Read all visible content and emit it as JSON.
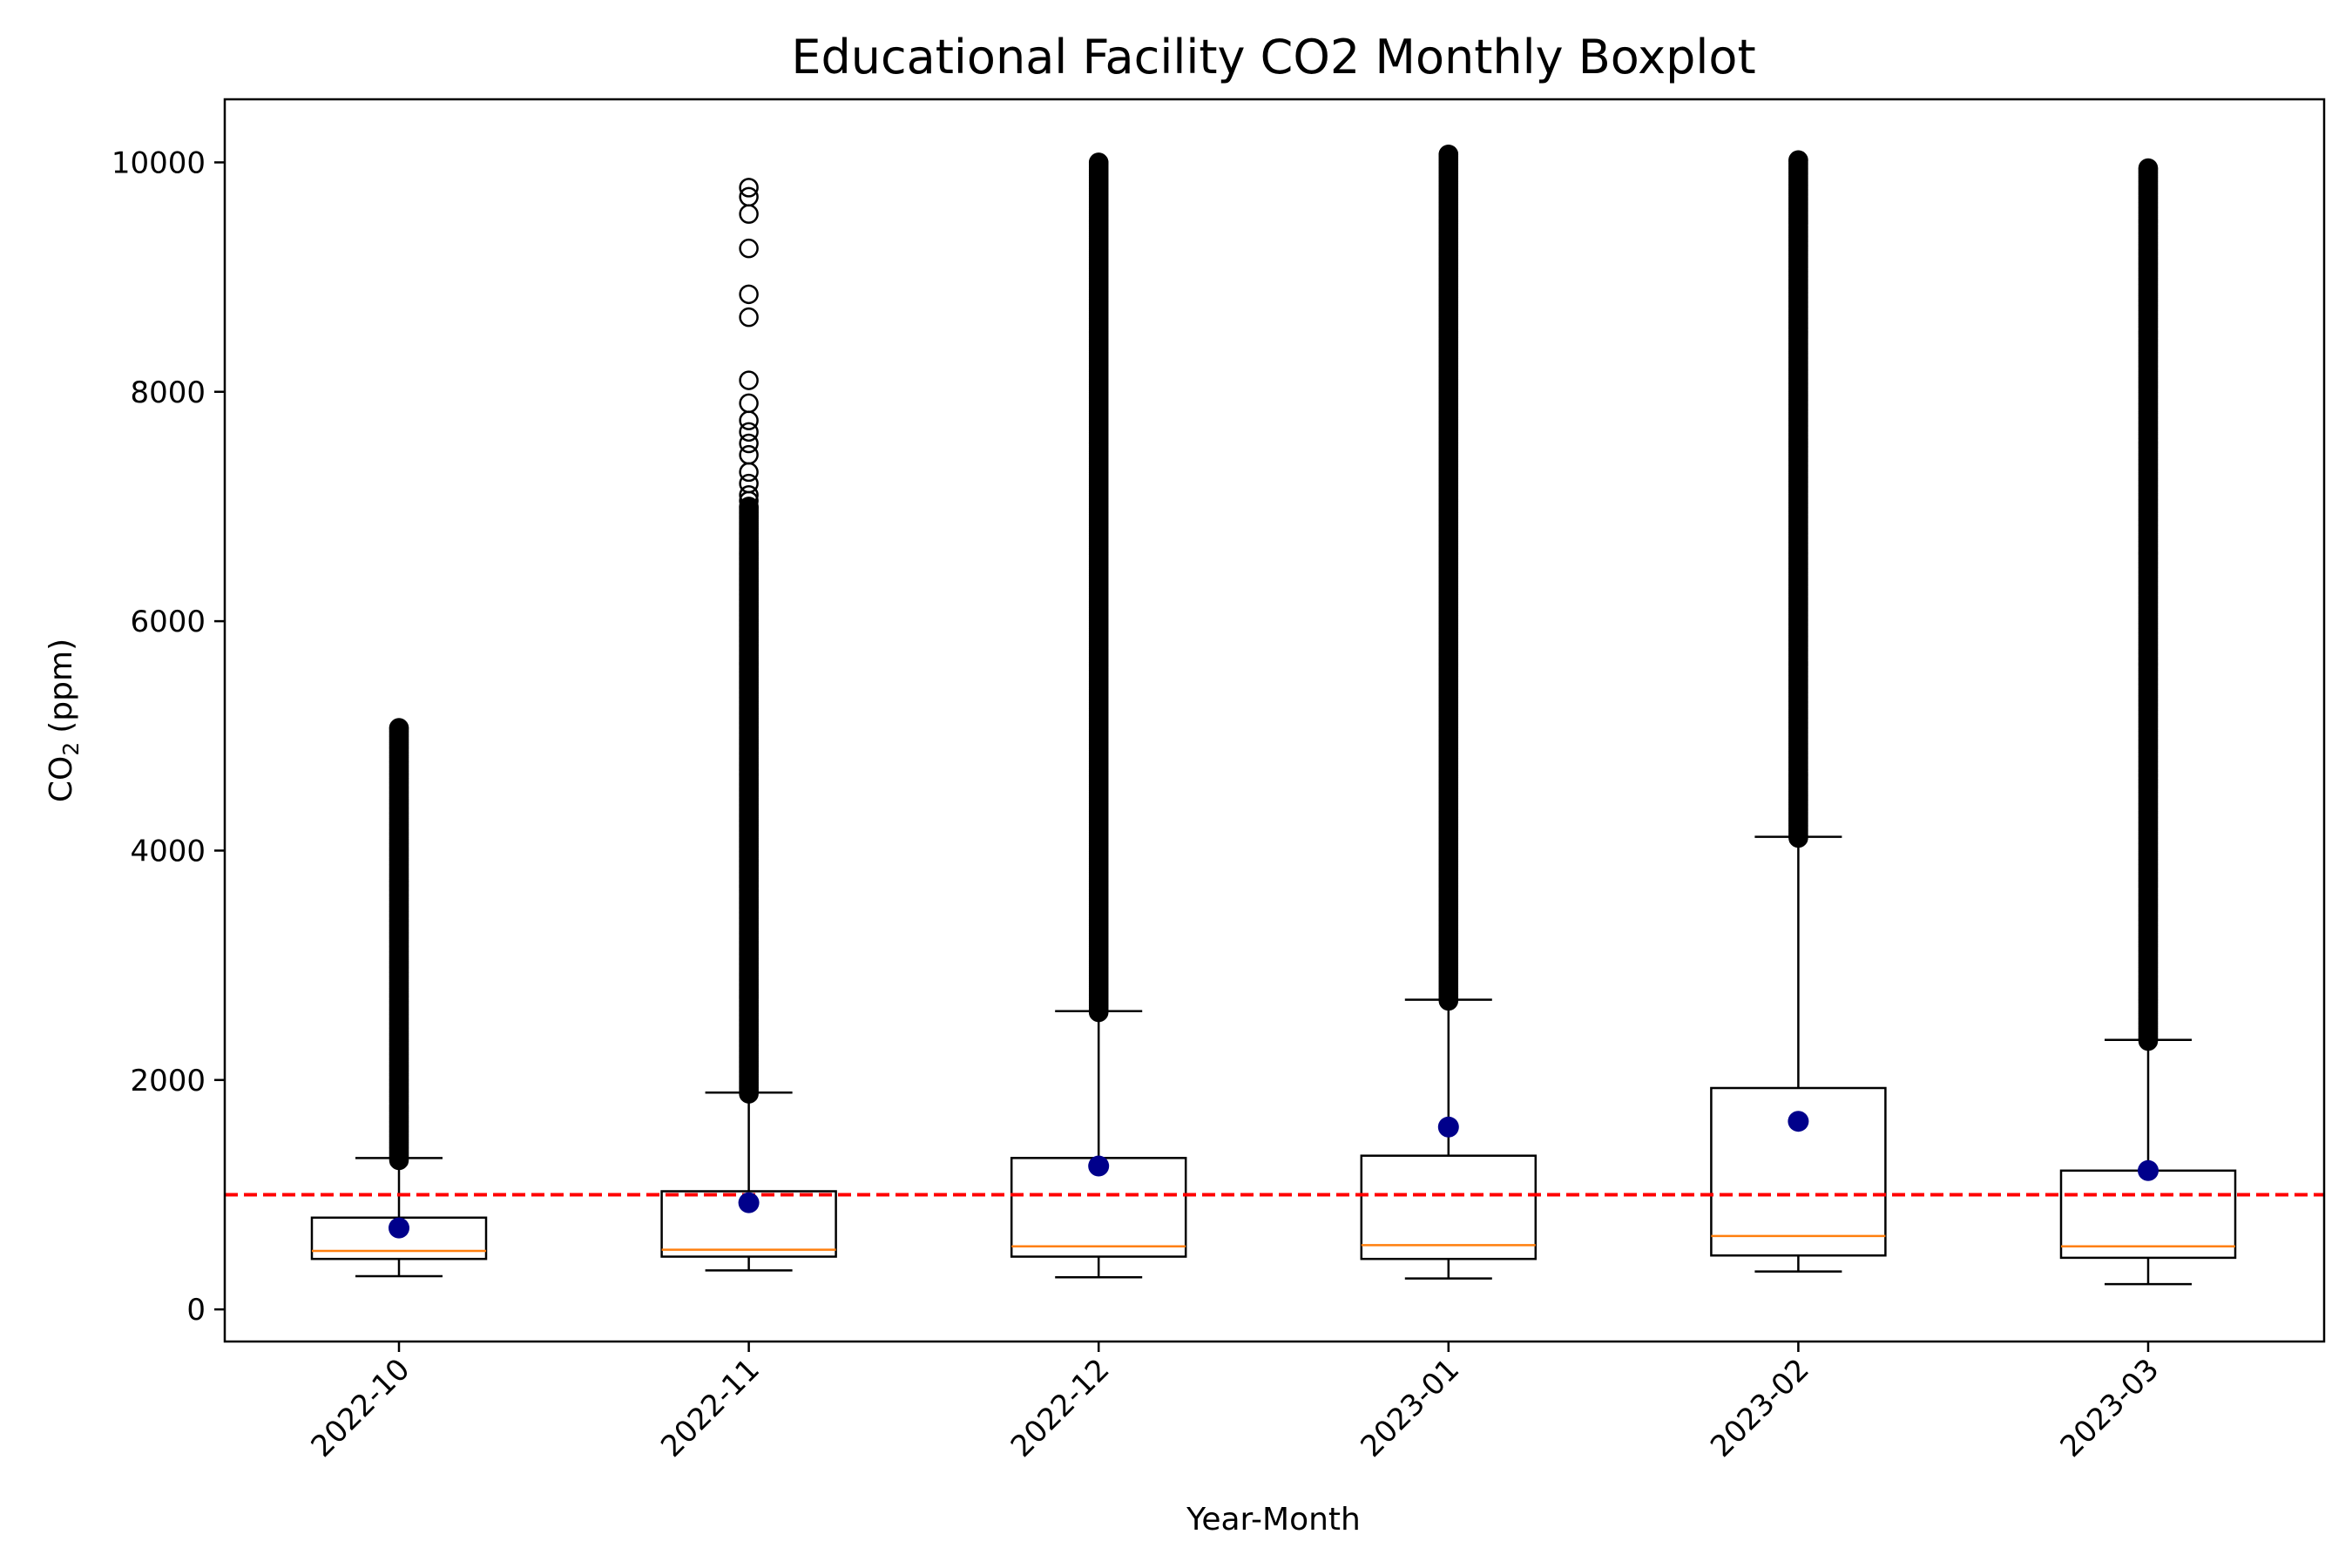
{
  "chart_data": {
    "type": "boxplot",
    "title": "Educational Facility CO2 Monthly Boxplot",
    "xlabel": "Year-Month",
    "ylabel_main": "CO",
    "ylabel_sub": "2",
    "ylabel_unit": "(ppm)",
    "categories": [
      "2022-10",
      "2022-11",
      "2022-12",
      "2023-01",
      "2023-02",
      "2023-03"
    ],
    "yticks": [
      0,
      2000,
      4000,
      6000,
      8000,
      10000
    ],
    "ylim": [
      -280,
      10550
    ],
    "grid": false,
    "reference_line": {
      "value": 1000,
      "color": "#ff0000",
      "style": "dashed"
    },
    "colors": {
      "box": "#000000",
      "median": "#ff7f0e",
      "mean": "#00008b",
      "flier": "#000000"
    },
    "boxes": [
      {
        "category": "2022-10",
        "whisker_low": 290,
        "q1": 440,
        "median": 510,
        "q3": 800,
        "whisker_high": 1320,
        "mean": 710,
        "flier_min": 1300,
        "flier_max": 5070
      },
      {
        "category": "2022-11",
        "whisker_low": 340,
        "q1": 460,
        "median": 520,
        "q3": 1030,
        "whisker_high": 1890,
        "mean": 930,
        "flier_min": 1880,
        "flier_max": 7000,
        "sparse_fliers": [
          7050,
          7100,
          7200,
          7300,
          7450,
          7550,
          7650,
          7750,
          7900,
          8100,
          8650,
          8850,
          9250,
          9550,
          9700,
          9780
        ]
      },
      {
        "category": "2022-12",
        "whisker_low": 280,
        "q1": 460,
        "median": 550,
        "q3": 1320,
        "whisker_high": 2600,
        "mean": 1250,
        "flier_min": 2590,
        "flier_max": 10000
      },
      {
        "category": "2023-01",
        "whisker_low": 270,
        "q1": 440,
        "median": 560,
        "q3": 1340,
        "whisker_high": 2700,
        "mean": 1590,
        "flier_min": 2690,
        "flier_max": 10070
      },
      {
        "category": "2023-02",
        "whisker_low": 330,
        "q1": 470,
        "median": 640,
        "q3": 1930,
        "whisker_high": 4120,
        "mean": 1640,
        "flier_min": 4110,
        "flier_max": 10020
      },
      {
        "category": "2023-03",
        "whisker_low": 220,
        "q1": 450,
        "median": 550,
        "q3": 1210,
        "whisker_high": 2350,
        "mean": 1210,
        "flier_min": 2340,
        "flier_max": 9950
      }
    ]
  }
}
